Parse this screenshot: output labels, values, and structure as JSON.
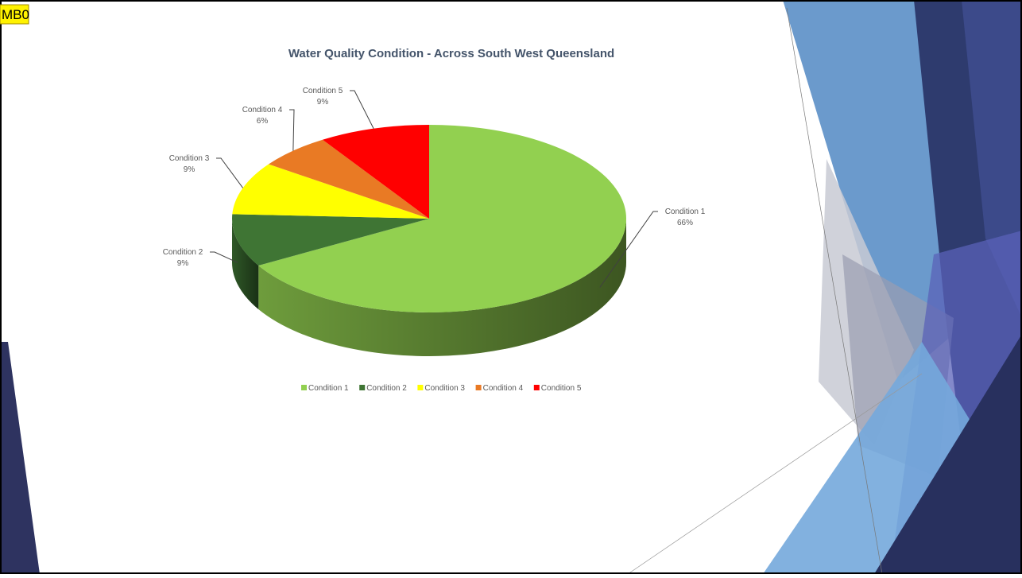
{
  "comment_marker": "MB0",
  "chart_data": {
    "type": "pie",
    "title": "Water Quality Condition - Across South West Queensland",
    "categories": [
      "Condition 1",
      "Condition 2",
      "Condition 3",
      "Condition 4",
      "Condition 5"
    ],
    "values": [
      66,
      9,
      9,
      6,
      9
    ],
    "value_labels": [
      "66%",
      "9%",
      "9%",
      "6%",
      "9%"
    ],
    "colors": [
      "#92d050",
      "#3f7534",
      "#ffff00",
      "#e97a24",
      "#ff0000"
    ],
    "legend": "bottom"
  }
}
